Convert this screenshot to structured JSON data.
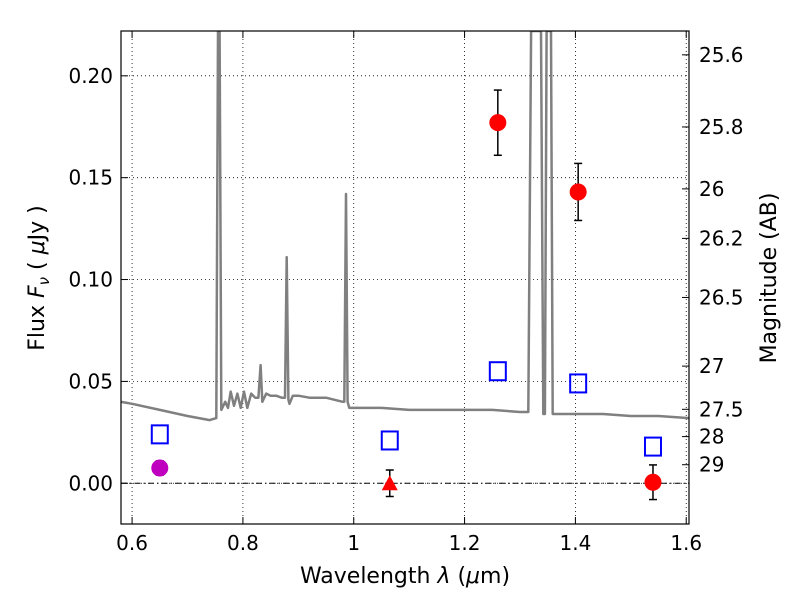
{
  "chart_data": {
    "type": "scatter",
    "xlabel": "Wavelength  λ (μm)",
    "ylabel": "Flux  Fν  ( μJy )",
    "y2label": "Magnitude (AB)",
    "xlim": [
      0.58,
      1.605
    ],
    "ylim": [
      -0.02,
      0.222
    ],
    "grid": true,
    "x_ticks": [
      0.6,
      0.8,
      1.0,
      1.2,
      1.4,
      1.6
    ],
    "x_tick_labels": [
      "0.6",
      "0.8",
      "1",
      "1.2",
      "1.4",
      "1.6"
    ],
    "y_ticks": [
      0.0,
      0.05,
      0.1,
      0.15,
      0.2
    ],
    "y_tick_labels": [
      "0.00",
      "0.05",
      "0.10",
      "0.15",
      "0.20"
    ],
    "y2_ticks": [
      {
        "label": "25.6",
        "flux": 0.2103
      },
      {
        "label": "25.8",
        "flux": 0.1749
      },
      {
        "label": "26",
        "flux": 0.1445
      },
      {
        "label": "26.2",
        "flux": 0.1202
      },
      {
        "label": "26.5",
        "flux": 0.0912
      },
      {
        "label": "27",
        "flux": 0.0575
      },
      {
        "label": "27.5",
        "flux": 0.0363
      },
      {
        "label": "28",
        "flux": 0.0229
      },
      {
        "label": "29",
        "flux": 0.0091
      }
    ],
    "series": [
      {
        "kind": "line",
        "color": "#808080",
        "points": [
          [
            0.58,
            0.04
          ],
          [
            0.6,
            0.039
          ],
          [
            0.65,
            0.036
          ],
          [
            0.7,
            0.033
          ],
          [
            0.74,
            0.031
          ],
          [
            0.752,
            0.032
          ],
          [
            0.755,
            0.222
          ],
          [
            0.758,
            0.222
          ],
          [
            0.761,
            0.036
          ],
          [
            0.768,
            0.04
          ],
          [
            0.773,
            0.037
          ],
          [
            0.778,
            0.045
          ],
          [
            0.784,
            0.038
          ],
          [
            0.79,
            0.044
          ],
          [
            0.796,
            0.037
          ],
          [
            0.802,
            0.045
          ],
          [
            0.808,
            0.037
          ],
          [
            0.815,
            0.044
          ],
          [
            0.822,
            0.042
          ],
          [
            0.828,
            0.042
          ],
          [
            0.832,
            0.058
          ],
          [
            0.835,
            0.04
          ],
          [
            0.842,
            0.044
          ],
          [
            0.85,
            0.043
          ],
          [
            0.86,
            0.043
          ],
          [
            0.87,
            0.042
          ],
          [
            0.876,
            0.042
          ],
          [
            0.879,
            0.111
          ],
          [
            0.882,
            0.041
          ],
          [
            0.884,
            0.039
          ],
          [
            0.89,
            0.043
          ],
          [
            0.9,
            0.043
          ],
          [
            0.92,
            0.042
          ],
          [
            0.95,
            0.042
          ],
          [
            0.98,
            0.04
          ],
          [
            0.983,
            0.04
          ],
          [
            0.986,
            0.142
          ],
          [
            0.989,
            0.04
          ],
          [
            0.992,
            0.037
          ],
          [
            1.0,
            0.037
          ],
          [
            1.05,
            0.037
          ],
          [
            1.1,
            0.036
          ],
          [
            1.15,
            0.036
          ],
          [
            1.2,
            0.036
          ],
          [
            1.25,
            0.036
          ],
          [
            1.3,
            0.035
          ],
          [
            1.315,
            0.035
          ],
          [
            1.32,
            0.222
          ],
          [
            1.338,
            0.222
          ],
          [
            1.342,
            0.034
          ],
          [
            1.345,
            0.034
          ],
          [
            1.348,
            0.222
          ],
          [
            1.356,
            0.222
          ],
          [
            1.359,
            0.034
          ],
          [
            1.4,
            0.034
          ],
          [
            1.45,
            0.034
          ],
          [
            1.5,
            0.033
          ],
          [
            1.55,
            0.033
          ],
          [
            1.605,
            0.032
          ]
        ]
      },
      {
        "kind": "points",
        "marker": "circle",
        "color": "#ff0000",
        "points": [
          {
            "x": 1.26,
            "y": 0.177,
            "err": 0.016
          },
          {
            "x": 1.405,
            "y": 0.143,
            "err": 0.014
          },
          {
            "x": 1.54,
            "y": 0.0005,
            "err": 0.0085
          }
        ]
      },
      {
        "kind": "points",
        "marker": "circle",
        "color": "#bf00bf",
        "points": [
          {
            "x": 0.65,
            "y": 0.0075,
            "err": 0.0035
          }
        ]
      },
      {
        "kind": "points",
        "marker": "triangle",
        "color": "#ff0000",
        "points": [
          {
            "x": 1.065,
            "y": 0.0,
            "err": 0.0065
          }
        ]
      },
      {
        "kind": "points",
        "marker": "square",
        "color": "#0000ff",
        "points": [
          {
            "x": 0.65,
            "y": 0.024
          },
          {
            "x": 1.065,
            "y": 0.021
          },
          {
            "x": 1.26,
            "y": 0.055
          },
          {
            "x": 1.405,
            "y": 0.049
          },
          {
            "x": 1.54,
            "y": 0.018
          }
        ]
      }
    ]
  }
}
